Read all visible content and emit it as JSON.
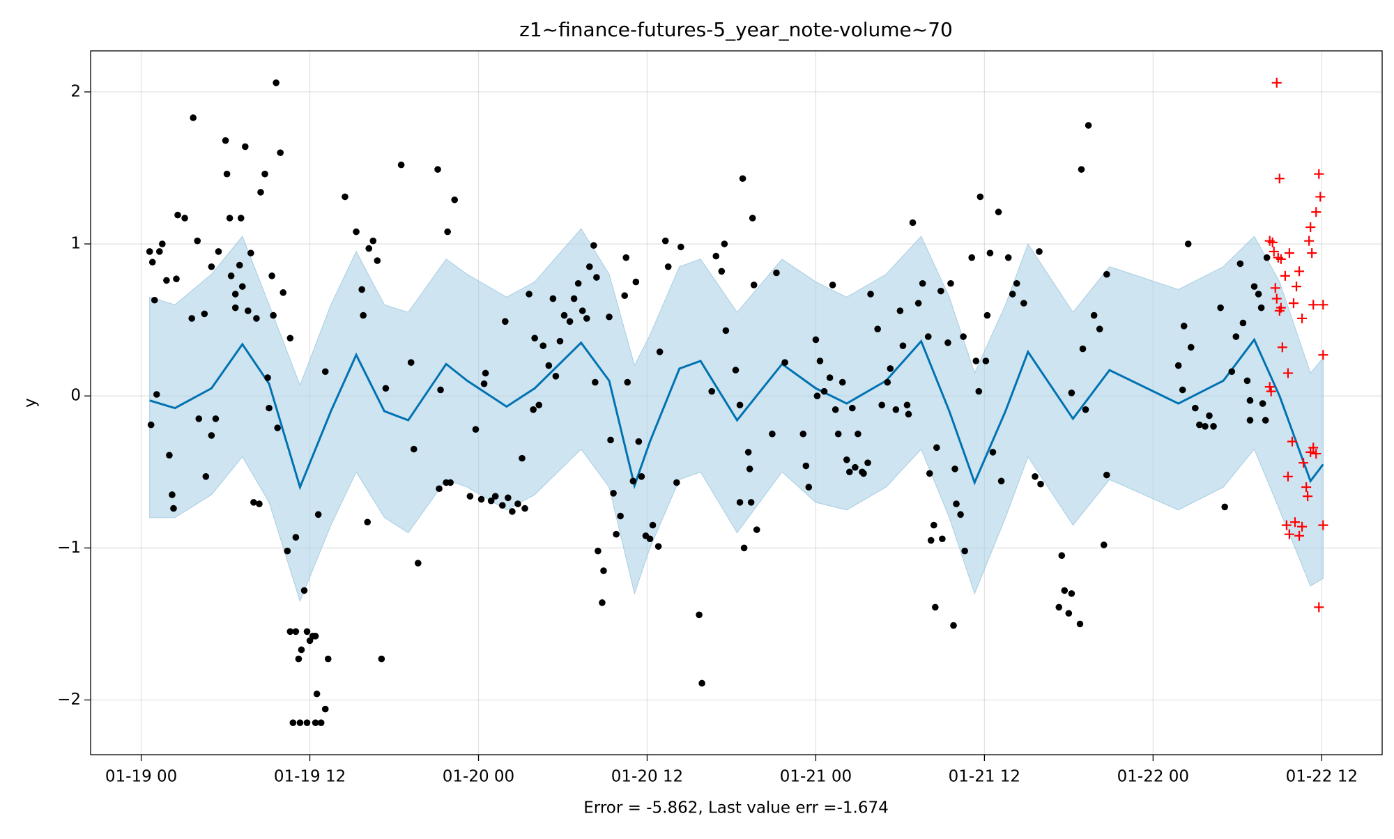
{
  "chart_data": {
    "type": "forecast",
    "title": "z1~finance-futures-5_year_note-volume~70",
    "xlabel": "Error = -5.862, Last value err =-1.674",
    "ylabel": "y",
    "xlim": [
      -3.6,
      88.3
    ],
    "ylim": [
      -2.36,
      2.27
    ],
    "xticks": [
      {
        "value": 0,
        "label": "01-19 00"
      },
      {
        "value": 12,
        "label": "01-19 12"
      },
      {
        "value": 24,
        "label": "01-20 00"
      },
      {
        "value": 36,
        "label": "01-20 12"
      },
      {
        "value": 48,
        "label": "01-21 00"
      },
      {
        "value": 60,
        "label": "01-21 12"
      },
      {
        "value": 72,
        "label": "01-22 00"
      },
      {
        "value": 84,
        "label": "01-22 12"
      }
    ],
    "yticks": [
      {
        "value": -2,
        "label": "−2"
      },
      {
        "value": -1,
        "label": "−1"
      },
      0,
      1,
      2
    ],
    "grid": true,
    "series": [
      {
        "kind": "line",
        "color": "#0072b2",
        "band_color": "#a6cde3",
        "x": [
          0.6,
          2.4,
          5,
          7.2,
          9.1,
          11.3,
          13.5,
          15.3,
          17.3,
          19,
          21.7,
          23.2,
          26,
          28,
          31.3,
          33.3,
          35.1,
          36.2,
          38.3,
          39.8,
          42.4,
          45.6,
          48,
          50.2,
          53,
          55.5,
          57.5,
          59.3,
          61.5,
          63.1,
          66.3,
          68.9,
          73.8,
          77,
          79.2,
          81,
          83.2,
          84.1
        ],
        "values": [
          -0.03,
          -0.08,
          0.05,
          0.34,
          0.08,
          -0.6,
          -0.1,
          0.27,
          -0.1,
          -0.16,
          0.21,
          0.1,
          -0.07,
          0.05,
          0.35,
          0.1,
          -0.59,
          -0.3,
          0.18,
          0.23,
          -0.16,
          0.21,
          0.05,
          -0.05,
          0.1,
          0.36,
          -0.1,
          -0.57,
          -0.1,
          0.29,
          -0.15,
          0.17,
          -0.05,
          0.1,
          0.37,
          0.0,
          -0.56,
          -0.45
        ],
        "upper": [
          0.65,
          0.6,
          0.8,
          1.05,
          0.6,
          0.07,
          0.6,
          0.95,
          0.6,
          0.55,
          0.9,
          0.8,
          0.65,
          0.75,
          1.1,
          0.8,
          0.2,
          0.4,
          0.85,
          0.9,
          0.55,
          0.9,
          0.75,
          0.65,
          0.8,
          1.05,
          0.65,
          0.15,
          0.6,
          1.0,
          0.55,
          0.85,
          0.7,
          0.85,
          1.05,
          0.75,
          0.15,
          0.25
        ],
        "lower": [
          -0.8,
          -0.8,
          -0.65,
          -0.4,
          -0.7,
          -1.35,
          -0.85,
          -0.5,
          -0.8,
          -0.9,
          -0.55,
          -0.6,
          -0.75,
          -0.65,
          -0.35,
          -0.6,
          -1.3,
          -1.0,
          -0.55,
          -0.5,
          -0.9,
          -0.5,
          -0.7,
          -0.75,
          -0.6,
          -0.35,
          -0.8,
          -1.3,
          -0.8,
          -0.4,
          -0.85,
          -0.55,
          -0.75,
          -0.6,
          -0.35,
          -0.75,
          -1.25,
          -1.2
        ]
      },
      {
        "kind": "scatter",
        "marker": "dot",
        "color": "#000000",
        "x": [
          0.6,
          0.8,
          0.95,
          1.1,
          0.7,
          1.3,
          1.5,
          1.8,
          2.0,
          2.2,
          2.3,
          2.6,
          3.1,
          2.5,
          3.7,
          3.6,
          4.0,
          4.1,
          4.5,
          4.6,
          5.0,
          5.0,
          5.3,
          5.5,
          6.0,
          6.1,
          6.3,
          6.4,
          6.7,
          6.7,
          7.0,
          7.1,
          7.2,
          7.4,
          7.6,
          7.8,
          8.0,
          8.2,
          8.4,
          8.5,
          8.8,
          9.0,
          9.1,
          9.3,
          9.4,
          9.6,
          9.7,
          9.9,
          10.1,
          10.4,
          10.6,
          11.0,
          10.6,
          11.0,
          11.2,
          11.4,
          11.6,
          11.8,
          12.0,
          12.2,
          12.4,
          12.5,
          13.1,
          13.3,
          12.6,
          10.8,
          11.3,
          11.8,
          12.4,
          12.8,
          13.1,
          14.5,
          15.3,
          15.7,
          15.8,
          16.2,
          16.5,
          16.8,
          16.1,
          17.1,
          17.4,
          18.5,
          19.2,
          19.4,
          19.7,
          21.1,
          21.3,
          21.2,
          21.7,
          21.8,
          22.0,
          22.3,
          23.4,
          23.8,
          24.2,
          24.5,
          24.4,
          25.9,
          24.9,
          25.2,
          25.7,
          26.1,
          26.4,
          26.8,
          27.3,
          27.1,
          27.6,
          28.0,
          27.9,
          28.3,
          28.6,
          29.0,
          29.3,
          29.5,
          29.8,
          30.1,
          30.5,
          30.8,
          31.1,
          31.4,
          31.7,
          31.9,
          32.2,
          32.3,
          32.4,
          32.5,
          32.8,
          32.9,
          33.3,
          33.4,
          33.6,
          33.8,
          34.1,
          34.4,
          34.5,
          34.6,
          35.0,
          35.2,
          35.4,
          35.6,
          35.9,
          36.2,
          36.4,
          36.8,
          36.9,
          37.3,
          37.5,
          38.1,
          38.4,
          39.7,
          39.9,
          40.6,
          40.9,
          41.3,
          41.5,
          41.6,
          42.3,
          42.6,
          42.6,
          42.8,
          42.9,
          43.2,
          43.3,
          43.5,
          43.6,
          43.4,
          43.8,
          45.2,
          44.9,
          45.8,
          47.1,
          47.3,
          47.5,
          48.0,
          48.1,
          48.3,
          48.6,
          49.0,
          49.2,
          49.4,
          49.6,
          49.9,
          50.2,
          50.4,
          50.6,
          50.8,
          51.0,
          51.3,
          51.4,
          51.7,
          51.9,
          52.4,
          52.7,
          53.1,
          53.3,
          53.7,
          54.0,
          54.2,
          54.5,
          54.6,
          54.9,
          55.3,
          55.6,
          56.0,
          56.1,
          56.4,
          56.5,
          56.2,
          56.6,
          56.9,
          57.0,
          57.4,
          57.6,
          57.8,
          57.9,
          58.0,
          58.3,
          58.5,
          58.6,
          59.1,
          59.4,
          59.6,
          59.7,
          60.2,
          60.1,
          60.4,
          60.6,
          61.0,
          61.2,
          61.7,
          62.0,
          62.3,
          62.8,
          63.6,
          63.9,
          64.0,
          65.3,
          65.5,
          65.7,
          66.0,
          66.2,
          66.2,
          66.8,
          66.9,
          67.0,
          67.2,
          67.4,
          67.8,
          68.2,
          68.5,
          68.7,
          68.7,
          73.8,
          74.1,
          74.2,
          74.5,
          74.7,
          75.0,
          75.3,
          75.7,
          76.0,
          76.3,
          76.8,
          77.1,
          77.6,
          77.9,
          78.2,
          78.4,
          78.7,
          78.9,
          79.2,
          79.5,
          79.7,
          79.8,
          80.0,
          80.1,
          78.9
        ],
        "values": [
          0.95,
          0.88,
          0.63,
          0.01,
          -0.19,
          0.95,
          1.0,
          0.76,
          -0.39,
          -0.65,
          -0.74,
          1.19,
          1.17,
          0.77,
          1.83,
          0.51,
          1.02,
          -0.15,
          0.54,
          -0.53,
          0.85,
          -0.26,
          -0.15,
          0.95,
          1.68,
          1.46,
          1.17,
          0.79,
          0.67,
          0.58,
          0.86,
          1.17,
          0.72,
          1.64,
          0.56,
          0.94,
          -0.7,
          0.51,
          -0.71,
          1.34,
          1.46,
          0.12,
          -0.08,
          0.79,
          0.53,
          2.06,
          -0.21,
          1.6,
          0.68,
          -1.02,
          0.38,
          -0.93,
          -1.55,
          -1.55,
          -1.73,
          -1.67,
          -1.28,
          -1.55,
          -1.61,
          -1.58,
          -1.58,
          -1.96,
          -2.06,
          -1.73,
          -0.78,
          -2.15,
          -2.15,
          -2.15,
          -2.15,
          -2.15,
          0.16,
          1.31,
          1.08,
          0.7,
          0.53,
          0.97,
          1.02,
          0.89,
          -0.83,
          -1.73,
          0.05,
          1.52,
          0.22,
          -0.35,
          -1.1,
          1.49,
          0.04,
          -0.61,
          -0.57,
          1.08,
          -0.57,
          1.29,
          -0.66,
          -0.22,
          -0.68,
          0.15,
          0.08,
          0.49,
          -0.69,
          -0.66,
          -0.72,
          -0.67,
          -0.76,
          -0.71,
          -0.74,
          -0.41,
          0.67,
          0.38,
          -0.09,
          -0.06,
          0.33,
          0.2,
          0.64,
          0.13,
          0.36,
          0.53,
          0.49,
          0.64,
          0.74,
          0.56,
          0.51,
          0.85,
          0.99,
          0.09,
          0.78,
          -1.02,
          -1.36,
          -1.15,
          0.52,
          -0.29,
          -0.64,
          -0.91,
          -0.79,
          0.66,
          0.91,
          0.09,
          -0.56,
          0.75,
          -0.3,
          -0.53,
          -0.92,
          -0.94,
          -0.85,
          -0.99,
          0.29,
          1.02,
          0.85,
          -0.57,
          0.98,
          -1.44,
          -1.89,
          0.03,
          0.92,
          0.82,
          1.0,
          0.43,
          0.17,
          -0.06,
          -0.7,
          1.43,
          -1.0,
          -0.37,
          -0.48,
          1.17,
          0.73,
          -0.7,
          -0.88,
          0.81,
          -0.25,
          0.22,
          -0.25,
          -0.46,
          -0.6,
          0.37,
          0.0,
          0.23,
          0.03,
          0.12,
          0.73,
          -0.09,
          -0.25,
          0.09,
          -0.42,
          -0.5,
          -0.08,
          -0.47,
          -0.25,
          -0.5,
          -0.51,
          -0.44,
          0.67,
          0.44,
          -0.06,
          0.09,
          0.18,
          -0.09,
          0.56,
          0.33,
          -0.06,
          -0.12,
          1.14,
          0.61,
          0.74,
          0.39,
          -0.51,
          -0.85,
          -1.39,
          -0.95,
          -0.34,
          0.69,
          -0.94,
          0.35,
          0.74,
          -1.51,
          -0.48,
          -0.71,
          -0.78,
          0.39,
          -1.02,
          0.91,
          0.23,
          0.03,
          1.31,
          0.53,
          0.23,
          0.94,
          -0.37,
          1.21,
          -0.56,
          0.91,
          0.67,
          0.74,
          0.61,
          -0.53,
          0.95,
          -0.58,
          -1.39,
          -1.05,
          -1.28,
          -1.43,
          -1.3,
          0.02,
          -1.5,
          1.49,
          0.31,
          -0.09,
          1.78,
          0.53,
          0.44,
          -0.98,
          0.8,
          -0.52,
          0.2,
          0.04,
          0.46,
          1.0,
          0.32,
          -0.08,
          -0.19,
          -0.2,
          -0.13,
          -0.2,
          0.58,
          -0.73,
          0.16,
          0.39,
          0.87,
          0.48,
          0.1,
          -0.16,
          0.72,
          0.67,
          0.58,
          -0.05,
          -0.16,
          0.91,
          -0.03
        ]
      },
      {
        "kind": "scatter",
        "marker": "plus",
        "color": "#ff0000",
        "x": [
          80.8,
          80.3,
          80.5,
          80.6,
          80.9,
          81.0,
          81.1,
          80.7,
          80.8,
          81.0,
          81.1,
          81.4,
          81.2,
          80.3,
          80.4,
          81.6,
          81.7,
          82.0,
          82.2,
          82.4,
          82.6,
          83.1,
          83.2,
          83.3,
          83.4,
          83.6,
          83.8,
          83.9,
          84.1,
          84.1,
          81.9,
          81.6,
          82.7,
          82.9,
          83.0,
          83.2,
          83.4,
          83.6,
          81.5,
          81.7,
          82.1,
          82.4,
          82.6,
          84.1,
          83.8
        ],
        "values": [
          2.06,
          1.02,
          1.01,
          0.95,
          0.91,
          1.43,
          0.9,
          0.71,
          0.64,
          0.56,
          0.58,
          0.79,
          0.32,
          0.06,
          0.03,
          0.15,
          0.94,
          0.61,
          0.72,
          0.82,
          0.51,
          1.02,
          1.11,
          0.94,
          0.6,
          1.21,
          1.46,
          1.31,
          0.6,
          0.27,
          -0.3,
          -0.53,
          -0.44,
          -0.6,
          -0.66,
          -0.37,
          -0.34,
          -0.38,
          -0.85,
          -0.91,
          -0.83,
          -0.92,
          -0.86,
          -0.85,
          -1.39
        ]
      }
    ]
  }
}
